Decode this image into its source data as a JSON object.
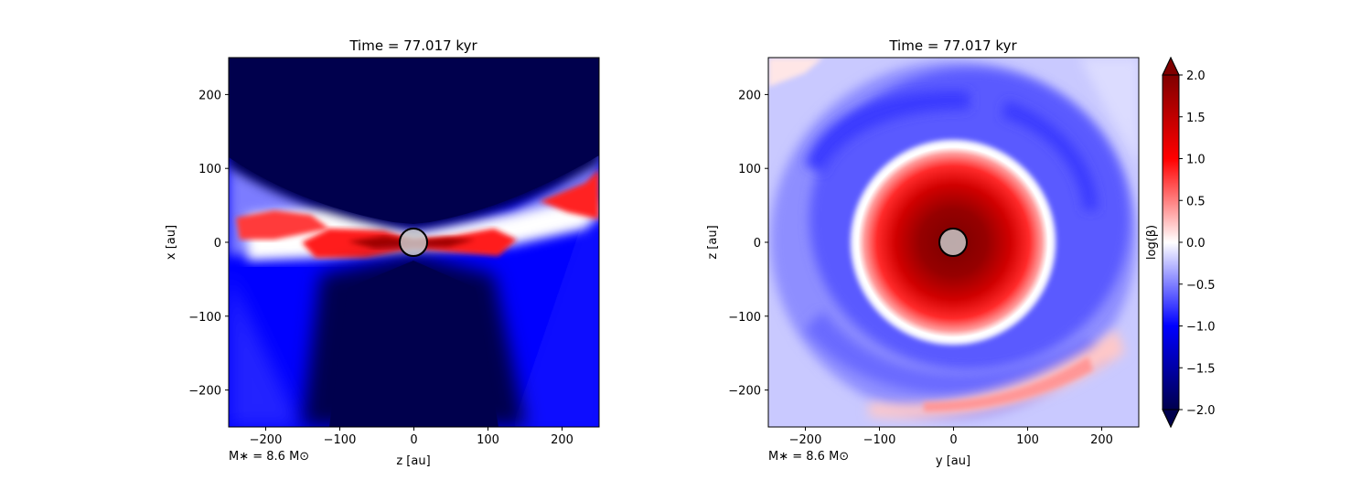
{
  "chart_data": [
    {
      "type": "heatmap",
      "panel": "left",
      "title": "Time = 77.017 kyr",
      "xlabel": "z [au]",
      "ylabel": "x [au]",
      "xlim": [
        -250,
        250
      ],
      "ylim": [
        -250,
        250
      ],
      "xticks": [
        -200,
        -100,
        0,
        100,
        200
      ],
      "yticks": [
        -200,
        -100,
        0,
        100,
        200
      ],
      "xtick_labels": [
        "−200",
        "−100",
        "0",
        "100",
        "200"
      ],
      "ytick_labels": [
        "−200",
        "−100",
        "0",
        "100",
        "200"
      ],
      "annotation": "M∗ = 8.6 M⊙",
      "description": "edge-on plasma beta map: red disk plane at x≈0, blue envelope, dark-blue outflow cones",
      "sink": {
        "x": 0,
        "y": 0,
        "radius_au": 18
      }
    },
    {
      "type": "heatmap",
      "panel": "right",
      "title": "Time = 77.017 kyr",
      "xlabel": "y [au]",
      "ylabel": "z [au]",
      "xlim": [
        -250,
        250
      ],
      "ylim": [
        -250,
        250
      ],
      "xticks": [
        -200,
        -100,
        0,
        100,
        200
      ],
      "yticks": [
        -200,
        -100,
        0,
        100,
        200
      ],
      "xtick_labels": [
        "−200",
        "−100",
        "0",
        "100",
        "200"
      ],
      "ytick_labels": [
        "−200",
        "−100",
        "0",
        "100",
        "200"
      ],
      "annotation": "M∗ = 8.6 M⊙",
      "description": "face-on plasma beta map: dark-red core disk radius≈120 au surrounded by blue ring and spiral arm",
      "sink": {
        "x": 0,
        "y": 0,
        "radius_au": 18
      }
    }
  ],
  "colorbar": {
    "label": "log(β)",
    "range": [
      -2.0,
      2.0
    ],
    "ticks": [
      2.0,
      1.5,
      1.0,
      0.5,
      0.0,
      -0.5,
      -1.0,
      -1.5,
      -2.0
    ],
    "tick_labels": [
      "2.0",
      "1.5",
      "1.0",
      "0.5",
      "0.0",
      "−0.5",
      "−1.0",
      "−1.5",
      "−2.0"
    ],
    "colormap": "seismic",
    "colors": {
      "low": "#00004d",
      "mid_low": "#0000ff",
      "mid": "#ffffff",
      "mid_high": "#ff0000",
      "high": "#800000"
    }
  }
}
